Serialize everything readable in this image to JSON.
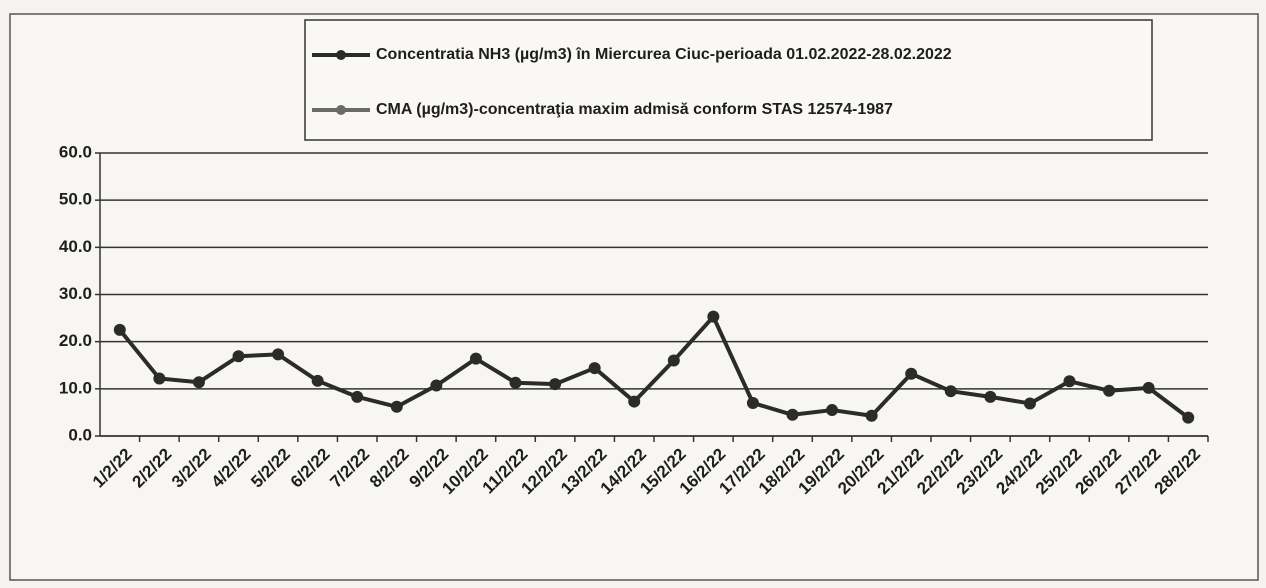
{
  "chart_data": {
    "type": "line",
    "categories": [
      "1/2/22",
      "2/2/22",
      "3/2/22",
      "4/2/22",
      "5/2/22",
      "6/2/22",
      "7/2/22",
      "8/2/22",
      "9/2/22",
      "10/2/22",
      "11/2/22",
      "12/2/22",
      "13/2/22",
      "14/2/22",
      "15/2/22",
      "16/2/22",
      "17/2/22",
      "18/2/22",
      "19/2/22",
      "20/2/22",
      "21/2/22",
      "22/2/22",
      "23/2/22",
      "24/2/22",
      "25/2/22",
      "26/2/22",
      "27/2/22",
      "28/2/22"
    ],
    "series": [
      {
        "name": "Concentratia NH3 (µg/m3) în Miercurea Ciuc-perioada 01.02.2022-28.02.2022",
        "color": "#2b2b2b",
        "values": [
          22.5,
          12.2,
          11.4,
          16.9,
          17.3,
          11.7,
          8.3,
          6.2,
          10.7,
          16.4,
          11.3,
          11.0,
          14.4,
          7.3,
          16.0,
          25.3,
          7.0,
          4.5,
          5.5,
          4.3,
          13.2,
          9.5,
          8.3,
          6.9,
          11.6,
          9.6,
          10.2,
          3.9
        ]
      },
      {
        "name": "CMA (µg/m3)-concentraţia maxim admisă conform STAS 12574-1987",
        "color": "#6a6a6a",
        "values": [
          null,
          null,
          null,
          null,
          null,
          null,
          null,
          null,
          null,
          null,
          null,
          null,
          null,
          null,
          null,
          null,
          null,
          null,
          null,
          null,
          null,
          null,
          null,
          null,
          null,
          null,
          null,
          null
        ]
      }
    ],
    "ylim": [
      0,
      60
    ],
    "yticks": [
      {
        "value": 0,
        "label": "0.0"
      },
      {
        "value": 10,
        "label": "10.0"
      },
      {
        "value": 20,
        "label": "20.0"
      },
      {
        "value": 30,
        "label": "30.0"
      },
      {
        "value": 40,
        "label": "40.0"
      },
      {
        "value": 50,
        "label": "50.0"
      },
      {
        "value": 60,
        "label": "60.0"
      }
    ],
    "grid": true
  }
}
